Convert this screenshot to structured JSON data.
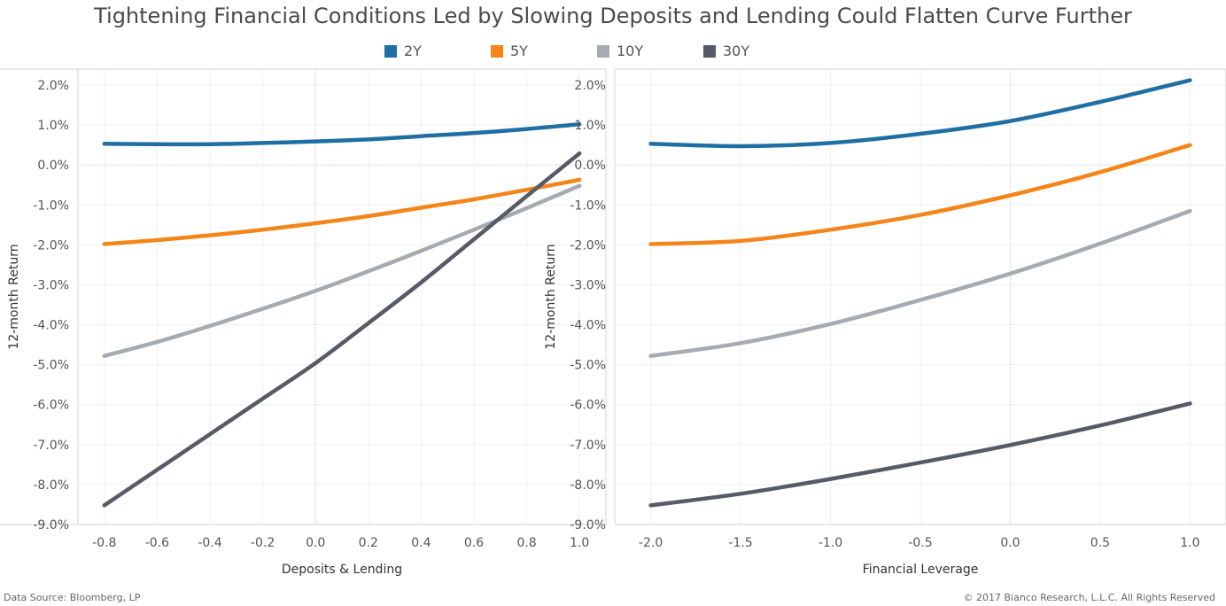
{
  "header": {
    "title": "Tightening Financial Conditions Led by Slowing Deposits and Lending Could Flatten Curve Further"
  },
  "legend": [
    {
      "label": "2Y",
      "color": "#1f6fa4"
    },
    {
      "label": "5Y",
      "color": "#f58518"
    },
    {
      "label": "10Y",
      "color": "#a6abb2"
    },
    {
      "label": "30Y",
      "color": "#575b66"
    }
  ],
  "footer": {
    "source": "Data Source: Bloomberg, LP",
    "copyright": "© 2017 Bianco Research, L.L.C. All Rights Reserved"
  },
  "chart_data": [
    {
      "type": "line",
      "xlabel": "Deposits & Lending",
      "ylabel": "12-month Return",
      "xlim": [
        -0.9,
        1.1
      ],
      "ylim": [
        -9.0,
        2.4
      ],
      "x_ticks": [
        -0.8,
        -0.6,
        -0.4,
        -0.2,
        0.0,
        0.2,
        0.4,
        0.6,
        0.8,
        1.0
      ],
      "x_tick_labels": [
        "-0.8",
        "-0.6",
        "-0.4",
        "-0.2",
        "0.0",
        "0.2",
        "0.4",
        "0.6",
        "0.8",
        "1.0"
      ],
      "y_ticks": [
        2,
        1,
        0,
        -1,
        -2,
        -3,
        -4,
        -5,
        -6,
        -7,
        -8,
        -9
      ],
      "y_tick_labels": [
        "2.0%",
        "1.0%",
        "0.0%",
        "-1.0%",
        "-2.0%",
        "-3.0%",
        "-4.0%",
        "-5.0%",
        "-6.0%",
        "-7.0%",
        "-8.0%",
        "-9.0%"
      ],
      "zero_lines": {
        "x": 0.0,
        "y": 0.0
      },
      "grid": true,
      "x": [
        -0.8,
        -0.6,
        -0.4,
        -0.2,
        0.0,
        0.2,
        0.4,
        0.6,
        0.8,
        1.0
      ],
      "series": [
        {
          "name": "2Y",
          "color": "#1f6fa4",
          "values": [
            0.53,
            0.52,
            0.52,
            0.55,
            0.59,
            0.64,
            0.72,
            0.8,
            0.9,
            1.02
          ]
        },
        {
          "name": "5Y",
          "color": "#f58518",
          "values": [
            -1.98,
            -1.88,
            -1.76,
            -1.62,
            -1.46,
            -1.28,
            -1.07,
            -0.86,
            -0.62,
            -0.37
          ]
        },
        {
          "name": "10Y",
          "color": "#a6abb2",
          "values": [
            -4.78,
            -4.43,
            -4.03,
            -3.6,
            -3.15,
            -2.66,
            -2.15,
            -1.62,
            -1.08,
            -0.52
          ]
        },
        {
          "name": "30Y",
          "color": "#575b66",
          "values": [
            -8.52,
            -7.63,
            -6.74,
            -5.85,
            -4.96,
            -3.96,
            -2.94,
            -1.86,
            -0.78,
            0.29
          ]
        }
      ]
    },
    {
      "type": "line",
      "xlabel": "Financial Leverage",
      "ylabel": "12-month Return",
      "xlim": [
        -2.2,
        1.2
      ],
      "ylim": [
        -9.0,
        2.4
      ],
      "x_ticks": [
        -2.0,
        -1.5,
        -1.0,
        -0.5,
        0.0,
        0.5,
        1.0
      ],
      "x_tick_labels": [
        "-2.0",
        "-1.5",
        "-1.0",
        "-0.5",
        "0.0",
        "0.5",
        "1.0"
      ],
      "y_ticks": [
        2,
        1,
        0,
        -1,
        -2,
        -3,
        -4,
        -5,
        -6,
        -7,
        -8,
        -9
      ],
      "y_tick_labels": [
        "2.0%",
        "1.0%",
        "0.0%",
        "-1.0%",
        "-2.0%",
        "-3.0%",
        "-4.0%",
        "-5.0%",
        "-6.0%",
        "-7.0%",
        "-8.0%",
        "-9.0%"
      ],
      "zero_lines": {
        "x": 0.0,
        "y": 0.0
      },
      "grid": true,
      "x": [
        -2.0,
        -1.5,
        -1.0,
        -0.5,
        0.0,
        0.5,
        1.0
      ],
      "series": [
        {
          "name": "2Y",
          "color": "#1f6fa4",
          "values": [
            0.53,
            0.47,
            0.55,
            0.78,
            1.1,
            1.58,
            2.12
          ]
        },
        {
          "name": "5Y",
          "color": "#f58518",
          "values": [
            -1.98,
            -1.9,
            -1.62,
            -1.25,
            -0.76,
            -0.18,
            0.5
          ]
        },
        {
          "name": "10Y",
          "color": "#a6abb2",
          "values": [
            -4.78,
            -4.46,
            -3.98,
            -3.38,
            -2.72,
            -1.97,
            -1.15
          ]
        },
        {
          "name": "30Y",
          "color": "#575b66",
          "values": [
            -8.52,
            -8.23,
            -7.86,
            -7.45,
            -7.01,
            -6.52,
            -5.97
          ]
        }
      ]
    }
  ]
}
